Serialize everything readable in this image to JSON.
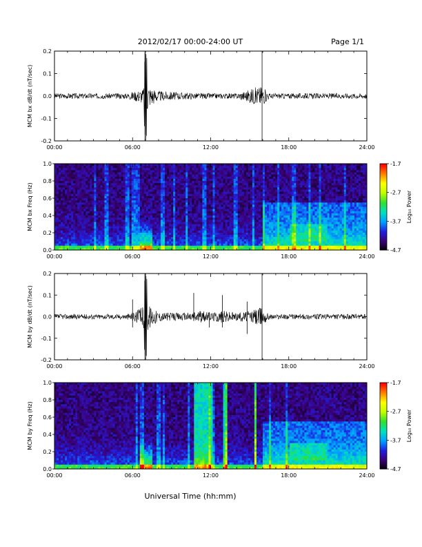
{
  "header": {
    "title": "2012/02/17  00:00-24:00 UT",
    "page": "Page 1/1"
  },
  "x_axis": {
    "label": "Universal Time (hh:mm)",
    "ticks": [
      "00:00",
      "06:00",
      "12:00",
      "18:00",
      "24:00"
    ]
  },
  "colorbar": {
    "label": "Log₁₀ Power",
    "ticks": [
      "-1.7",
      "-2.7",
      "-3.7",
      "-4.7"
    ],
    "range": [
      -4.7,
      -1.7
    ],
    "colors": [
      "#000000",
      "#3c007a",
      "#2020e0",
      "#00a0ff",
      "#00e0c0",
      "#30e030",
      "#c0ff00",
      "#ffff00",
      "#ff8000",
      "#ff0000"
    ]
  },
  "chart_data": [
    {
      "type": "line",
      "name": "bx-dbdt",
      "ylabel": "MCM bx dB/dt (nT/sec)",
      "xlim": [
        0,
        24
      ],
      "ylim": [
        -0.2,
        0.2
      ],
      "yticks": [
        "0.2",
        "0.1",
        "0.0",
        "-0.1",
        "-0.2"
      ],
      "series": [
        {
          "x": [
            0,
            2,
            4,
            5.5,
            6.2,
            6.8,
            7.0,
            7.3,
            8,
            9,
            10,
            12,
            14,
            15.9,
            16.5,
            18,
            20,
            22,
            24
          ],
          "y": [
            0.0,
            0.0,
            0.0,
            0.0,
            0.03,
            0.06,
            0.2,
            0.1,
            0.03,
            0.02,
            0.01,
            0.0,
            0.0,
            0.1,
            0.0,
            0.0,
            0.0,
            0.0,
            0.0
          ]
        }
      ]
    },
    {
      "type": "heatmap",
      "name": "bx-spectrogram",
      "ylabel": "MCM bx Freq (Hz)",
      "xlim": [
        0,
        24
      ],
      "ylim": [
        0.0,
        1.0
      ],
      "yticks": [
        "1.0",
        "0.8",
        "0.6",
        "0.4",
        "0.2",
        "0.0"
      ]
    },
    {
      "type": "line",
      "name": "by-dbdt",
      "ylabel": "MCM by dB/dt (nT/sec)",
      "xlim": [
        0,
        24
      ],
      "ylim": [
        -0.2,
        0.2
      ],
      "yticks": [
        "0.2",
        "0.1",
        "0.0",
        "-0.1",
        "-0.2"
      ],
      "series": [
        {
          "x": [
            0,
            2,
            4,
            5.5,
            6.2,
            6.8,
            7.0,
            7.3,
            8,
            9,
            10,
            11,
            12,
            13,
            14,
            15.1,
            15.9,
            16.5,
            18,
            20,
            22,
            24
          ],
          "y": [
            0.0,
            0.0,
            0.0,
            0.0,
            0.04,
            0.1,
            0.2,
            0.12,
            0.03,
            0.02,
            0.02,
            0.05,
            0.02,
            0.05,
            0.02,
            0.05,
            0.1,
            0.0,
            0.0,
            0.0,
            0.0,
            0.0
          ]
        }
      ]
    },
    {
      "type": "heatmap",
      "name": "by-spectrogram",
      "ylabel": "MCM by Freq (Hz)",
      "xlim": [
        0,
        24
      ],
      "ylim": [
        0.0,
        1.0
      ],
      "yticks": [
        "1.0",
        "0.8",
        "0.6",
        "0.4",
        "0.2",
        "0.0"
      ]
    }
  ]
}
